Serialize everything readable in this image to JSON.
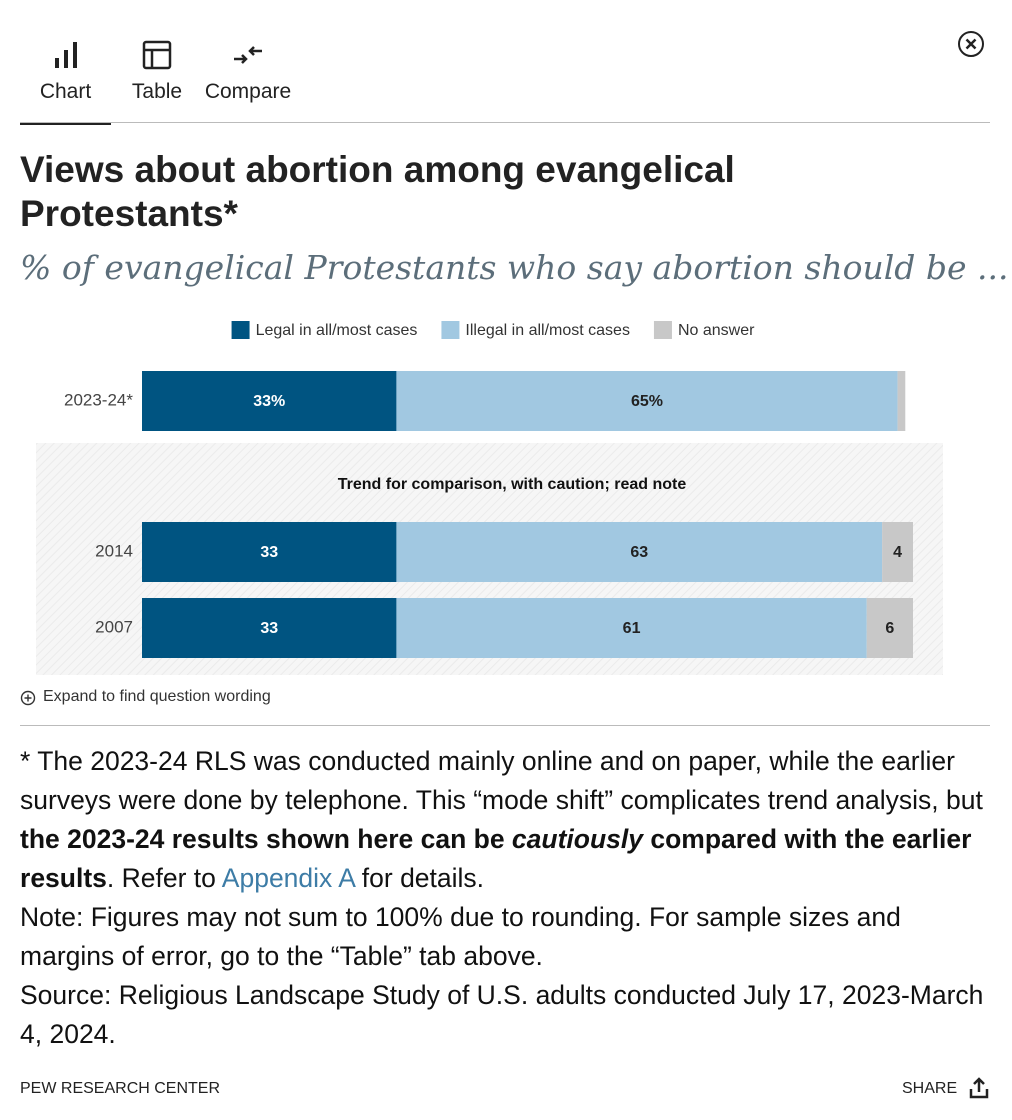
{
  "tabs": [
    "Chart",
    "Table",
    "Compare"
  ],
  "chart_data": {
    "type": "bar",
    "orientation": "horizontal",
    "stacked": true,
    "title": "Views about abortion among evangelical Protestants*",
    "subtitle": "% of evangelical Protestants who say abortion should be ...",
    "categories": [
      "2023-24*",
      "2014",
      "2007"
    ],
    "xlim": [
      0,
      100
    ],
    "annotation": "Trend for comparison, with caution; read note",
    "series": [
      {
        "name": "Legal in all/most cases",
        "color": "#005481",
        "label_color": "#ffffff",
        "values": [
          33,
          33,
          33
        ],
        "value_labels": [
          "33%",
          "33",
          "33"
        ]
      },
      {
        "name": "Illegal in all/most cases",
        "color": "#a1c8e1",
        "label_color": "#222222",
        "values": [
          65,
          63,
          61
        ],
        "value_labels": [
          "65%",
          "63",
          "61"
        ]
      },
      {
        "name": "No answer",
        "color": "#c8c8c8",
        "label_color": "#222222",
        "values": [
          1,
          4,
          6
        ],
        "value_labels": [
          null,
          "4",
          "6"
        ]
      }
    ]
  },
  "expand_label": "Expand to find question wording",
  "notes": [
    "* The 2023-24 RLS was conducted mainly online and on paper, while the earlier surveys were done by telephone. This “mode shift” complicates trend analysis, but ",
    "the 2023-24 results shown here can be ",
    "cautiously",
    " compared with the earlier results",
    ". Refer to ",
    "Appendix A",
    " for details."
  ],
  "note": "Note: Figures may not sum to 100% due to rounding. For sample sizes and margins of error, go to the “Table” tab above.",
  "source": "Source: Religious Landscape Study of U.S. adults conducted July 17, 2023-March 4, 2024.",
  "footer": {
    "brand": "PEW RESEARCH CENTER",
    "share": "SHARE"
  }
}
